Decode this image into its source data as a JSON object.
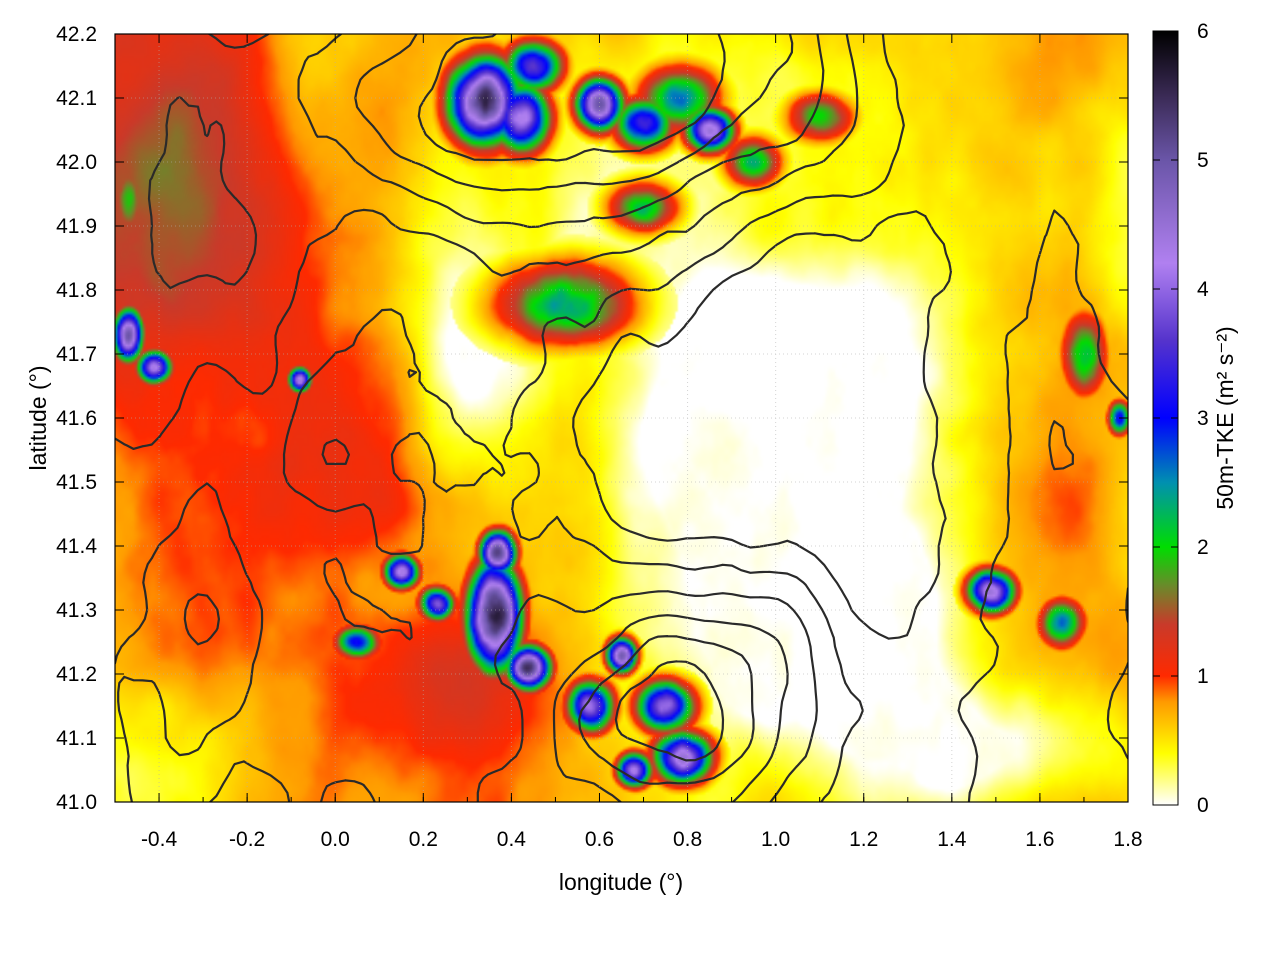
{
  "chart_data": {
    "type": "heatmap",
    "xlabel": "longitude (°)",
    "ylabel": "latitude (°)",
    "colorbar_label": "50m-TKE (m² s⁻²)",
    "xlim": [
      -0.5,
      1.8
    ],
    "ylim": [
      41.0,
      42.2
    ],
    "x_ticks": [
      -0.4,
      -0.2,
      0.0,
      0.2,
      0.4,
      0.6,
      0.8,
      1.0,
      1.2,
      1.4,
      1.6,
      1.8
    ],
    "x_tick_labels": [
      "-0.4",
      "-0.2",
      "0.0",
      "0.2",
      "0.4",
      "0.6",
      "0.8",
      "1.0",
      "1.2",
      "1.4",
      "1.6",
      "1.8"
    ],
    "y_ticks": [
      41.0,
      41.1,
      41.2,
      41.3,
      41.4,
      41.5,
      41.6,
      41.7,
      41.8,
      41.9,
      42.0,
      42.1,
      42.2
    ],
    "y_tick_labels": [
      "41.0",
      "41.1",
      "41.2",
      "41.3",
      "41.4",
      "41.5",
      "41.6",
      "41.7",
      "41.8",
      "41.9",
      "42.0",
      "42.1",
      "42.2"
    ],
    "colorbar_range": [
      0,
      6
    ],
    "colorbar_ticks": [
      0,
      1,
      2,
      3,
      4,
      5,
      6
    ],
    "colorbar_tick_labels": [
      "0",
      "1",
      "2",
      "3",
      "4",
      "5",
      "6"
    ],
    "colormap": [
      {
        "value": 0.0,
        "color": "#ffffff"
      },
      {
        "value": 0.4,
        "color": "#ffff00"
      },
      {
        "value": 0.8,
        "color": "#ff9a00"
      },
      {
        "value": 1.0,
        "color": "#ff2a00"
      },
      {
        "value": 1.4,
        "color": "#c93a2a"
      },
      {
        "value": 1.7,
        "color": "#6a8a2a"
      },
      {
        "value": 2.0,
        "color": "#00dd00"
      },
      {
        "value": 2.5,
        "color": "#0090b0"
      },
      {
        "value": 3.0,
        "color": "#0000ff"
      },
      {
        "value": 3.6,
        "color": "#5533cc"
      },
      {
        "value": 4.2,
        "color": "#b080f0"
      },
      {
        "value": 5.0,
        "color": "#6a55a8"
      },
      {
        "value": 5.5,
        "color": "#3a2a55"
      },
      {
        "value": 6.0,
        "color": "#000000"
      }
    ],
    "grid": true,
    "contours": true,
    "hotspots": [
      {
        "lon": 0.34,
        "lat": 42.095,
        "tke": 5.6,
        "rlon": 0.06,
        "rlat": 0.05
      },
      {
        "lon": 0.42,
        "lat": 42.07,
        "tke": 4.4,
        "rlon": 0.05,
        "rlat": 0.04
      },
      {
        "lon": 0.45,
        "lat": 42.15,
        "tke": 3.8,
        "rlon": 0.05,
        "rlat": 0.03
      },
      {
        "lon": 0.6,
        "lat": 42.09,
        "tke": 4.8,
        "rlon": 0.04,
        "rlat": 0.03
      },
      {
        "lon": 0.7,
        "lat": 42.06,
        "tke": 3.5,
        "rlon": 0.05,
        "rlat": 0.03
      },
      {
        "lon": 0.85,
        "lat": 42.05,
        "tke": 4.5,
        "rlon": 0.04,
        "rlat": 0.025
      },
      {
        "lon": 0.78,
        "lat": 42.1,
        "tke": 2.6,
        "rlon": 0.07,
        "rlat": 0.04
      },
      {
        "lon": 0.7,
        "lat": 41.93,
        "tke": 2.3,
        "rlon": 0.06,
        "rlat": 0.03
      },
      {
        "lon": 0.52,
        "lat": 41.78,
        "tke": 2.4,
        "rlon": 0.12,
        "rlat": 0.05
      },
      {
        "lon": -0.47,
        "lat": 41.94,
        "tke": 2.0,
        "rlon": 0.03,
        "rlat": 0.05
      },
      {
        "lon": -0.47,
        "lat": 41.73,
        "tke": 5.2,
        "rlon": 0.025,
        "rlat": 0.03
      },
      {
        "lon": -0.41,
        "lat": 41.68,
        "tke": 4.2,
        "rlon": 0.03,
        "rlat": 0.02
      },
      {
        "lon": -0.08,
        "lat": 41.66,
        "tke": 4.3,
        "rlon": 0.02,
        "rlat": 0.015
      },
      {
        "lon": 0.36,
        "lat": 41.29,
        "tke": 6.0,
        "rlon": 0.045,
        "rlat": 0.06
      },
      {
        "lon": 0.37,
        "lat": 41.39,
        "tke": 5.2,
        "rlon": 0.03,
        "rlat": 0.025
      },
      {
        "lon": 0.44,
        "lat": 41.21,
        "tke": 5.5,
        "rlon": 0.035,
        "rlat": 0.025
      },
      {
        "lon": 0.15,
        "lat": 41.36,
        "tke": 4.2,
        "rlon": 0.03,
        "rlat": 0.02
      },
      {
        "lon": 0.23,
        "lat": 41.31,
        "tke": 3.8,
        "rlon": 0.03,
        "rlat": 0.02
      },
      {
        "lon": 0.65,
        "lat": 41.23,
        "tke": 5.0,
        "rlon": 0.025,
        "rlat": 0.02
      },
      {
        "lon": 0.58,
        "lat": 41.15,
        "tke": 4.0,
        "rlon": 0.04,
        "rlat": 0.03
      },
      {
        "lon": 0.75,
        "lat": 41.15,
        "tke": 4.0,
        "rlon": 0.05,
        "rlat": 0.03
      },
      {
        "lon": 0.79,
        "lat": 41.07,
        "tke": 4.4,
        "rlon": 0.05,
        "rlat": 0.03
      },
      {
        "lon": 0.68,
        "lat": 41.05,
        "tke": 4.3,
        "rlon": 0.03,
        "rlat": 0.02
      },
      {
        "lon": 0.05,
        "lat": 41.25,
        "tke": 3.0,
        "rlon": 0.04,
        "rlat": 0.02
      },
      {
        "lon": 1.49,
        "lat": 41.33,
        "tke": 4.5,
        "rlon": 0.04,
        "rlat": 0.025
      },
      {
        "lon": 1.7,
        "lat": 41.7,
        "tke": 2.4,
        "rlon": 0.04,
        "rlat": 0.05
      },
      {
        "lon": 1.78,
        "lat": 41.6,
        "tke": 3.2,
        "rlon": 0.02,
        "rlat": 0.02
      },
      {
        "lon": 1.65,
        "lat": 41.28,
        "tke": 2.6,
        "rlon": 0.04,
        "rlat": 0.03
      },
      {
        "lon": 1.1,
        "lat": 42.07,
        "tke": 2.0,
        "rlon": 0.06,
        "rlat": 0.03
      },
      {
        "lon": 0.95,
        "lat": 42.0,
        "tke": 2.2,
        "rlon": 0.05,
        "rlat": 0.03
      }
    ]
  }
}
